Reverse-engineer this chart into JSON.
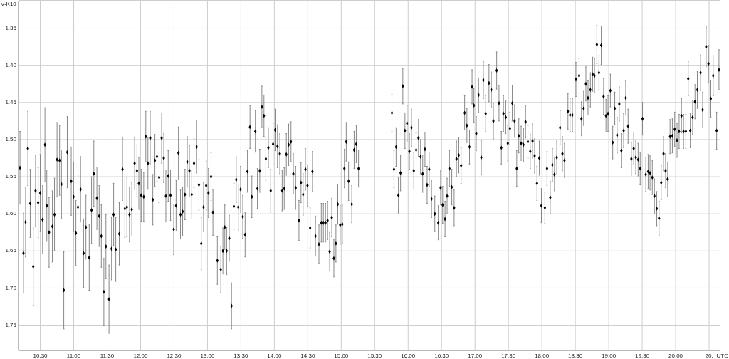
{
  "chart_data": {
    "type": "scatter",
    "ylabel": "V-K10",
    "xlabel": "UTC",
    "marker": "diamond",
    "grid": true,
    "xlim": [
      10.175,
      20.67
    ],
    "ylim": [
      1.784,
      1.313
    ],
    "xticks": [
      {
        "value": 10.5,
        "label": "10:30"
      },
      {
        "value": 11,
        "label": "11:00"
      },
      {
        "value": 11.5,
        "label": "11:30"
      },
      {
        "value": 12,
        "label": "12:00"
      },
      {
        "value": 12.5,
        "label": "12:30"
      },
      {
        "value": 13,
        "label": "13:00"
      },
      {
        "value": 13.5,
        "label": "13:30"
      },
      {
        "value": 14,
        "label": "14:00"
      },
      {
        "value": 14.5,
        "label": "14:30"
      },
      {
        "value": 15,
        "label": "15:00"
      },
      {
        "value": 15.5,
        "label": "15:30"
      },
      {
        "value": 16,
        "label": "16:00"
      },
      {
        "value": 16.5,
        "label": "16:30"
      },
      {
        "value": 17,
        "label": "17:00"
      },
      {
        "value": 17.5,
        "label": "17:30"
      },
      {
        "value": 18,
        "label": "18:00"
      },
      {
        "value": 18.5,
        "label": "18:30"
      },
      {
        "value": 19,
        "label": "19:00"
      },
      {
        "value": 19.5,
        "label": "19:30"
      },
      {
        "value": 20,
        "label": "20:00"
      },
      {
        "value": 20.5,
        "label": "20:"
      }
    ],
    "yticks": [
      1.35,
      {
        "value": 1.4,
        "label": "1.40"
      },
      1.45,
      {
        "value": 1.5,
        "label": "1.50"
      },
      1.55,
      {
        "value": 1.6,
        "label": "1.60"
      },
      1.65,
      {
        "value": 1.7,
        "label": "1.70"
      },
      1.75
    ],
    "x": [
      10.197,
      10.249,
      10.281,
      10.315,
      10.35,
      10.395,
      10.43,
      10.469,
      10.5,
      10.535,
      10.57,
      10.598,
      10.632,
      10.681,
      10.713,
      10.751,
      10.789,
      10.817,
      10.852,
      10.904,
      10.963,
      10.998,
      11.033,
      11.064,
      11.103,
      11.148,
      11.183,
      11.232,
      11.267,
      11.301,
      11.347,
      11.381,
      11.413,
      11.451,
      11.482,
      11.528,
      11.566,
      11.597,
      11.629,
      11.681,
      11.73,
      11.765,
      11.796,
      11.834,
      11.869,
      11.911,
      11.946,
      11.974,
      12.009,
      12.047,
      12.078,
      12.11,
      12.144,
      12.183,
      12.214,
      12.245,
      12.277,
      12.315,
      12.347,
      12.378,
      12.413,
      12.448,
      12.496,
      12.531,
      12.566,
      12.597,
      12.629,
      12.664,
      12.698,
      12.73,
      12.765,
      12.799,
      12.838,
      12.873,
      12.907,
      12.942,
      12.981,
      13.015,
      13.054,
      13.082,
      13.148,
      13.2,
      13.231,
      13.259,
      13.287,
      13.326,
      13.36,
      13.395,
      13.43,
      13.461,
      13.496,
      13.528,
      13.563,
      13.598,
      13.636,
      13.664,
      13.716,
      13.747,
      13.782,
      13.814,
      13.845,
      13.873,
      13.911,
      13.946,
      13.981,
      14.012,
      14.047,
      14.082,
      14.117,
      14.148,
      14.179,
      14.214,
      14.249,
      14.284,
      14.319,
      14.368,
      14.399,
      14.43,
      14.465,
      14.496,
      14.535,
      14.57,
      14.615,
      14.667,
      14.702,
      14.733,
      14.765,
      14.796,
      14.827,
      14.859,
      14.89,
      14.921,
      14.949,
      14.984,
      15.016,
      15.047,
      15.075,
      15.11,
      15.158,
      15.193,
      15.225,
      15.259,
      15.758,
      15.789,
      15.82,
      15.855,
      15.887,
      15.921,
      15.953,
      15.984,
      16.019,
      16.05,
      16.085,
      16.12,
      16.155,
      16.186,
      16.218,
      16.252,
      16.284,
      16.315,
      16.35,
      16.399,
      16.451,
      16.486,
      16.517,
      16.552,
      16.583,
      16.618,
      16.653,
      16.688,
      16.723,
      16.758,
      16.792,
      16.845,
      16.879,
      16.918,
      16.956,
      16.984,
      17.019,
      17.054,
      17.094,
      17.125,
      17.16,
      17.209,
      17.244,
      17.275,
      17.324,
      17.359,
      17.394,
      17.425,
      17.46,
      17.491,
      17.523,
      17.557,
      17.592,
      17.624,
      17.655,
      17.69,
      17.725,
      17.756,
      17.791,
      17.826,
      17.861,
      17.892,
      17.927,
      17.962,
      17.993,
      18.045,
      18.077,
      18.125,
      18.157,
      18.188,
      18.223,
      18.272,
      18.307,
      18.338,
      18.39,
      18.421,
      18.456,
      18.509,
      18.557,
      18.592,
      18.624,
      18.658,
      18.69,
      18.725,
      18.759,
      18.787,
      18.822,
      18.854,
      18.888,
      18.923,
      18.958,
      18.989,
      19.024,
      19.059,
      19.09,
      19.125,
      19.157,
      19.188,
      19.223,
      19.254,
      19.289,
      19.338,
      19.373,
      19.404,
      19.439,
      19.47,
      19.505,
      19.554,
      19.589,
      19.617,
      19.651,
      19.683,
      19.718,
      19.752,
      19.784,
      19.819,
      19.85,
      19.881,
      19.916,
      19.951,
      19.986,
      20.021,
      20.052,
      20.087,
      20.118,
      20.153,
      20.188,
      20.219,
      20.254,
      20.289,
      20.324,
      20.373,
      20.404,
      20.456,
      20.491,
      20.526,
      20.561,
      20.613,
      20.648
    ],
    "series": [
      {
        "color": "#000000",
        "values": [
          1.538,
          1.653,
          1.611,
          1.512,
          1.586,
          1.671,
          1.569,
          1.585,
          1.572,
          1.608,
          1.507,
          1.589,
          1.625,
          1.617,
          1.601,
          1.527,
          1.528,
          1.56,
          1.703,
          1.517,
          1.556,
          1.577,
          1.626,
          1.591,
          1.567,
          1.653,
          1.618,
          1.659,
          1.595,
          1.546,
          1.579,
          1.603,
          1.63,
          1.705,
          1.644,
          1.715,
          1.647,
          1.601,
          1.648,
          1.627,
          1.54,
          1.593,
          1.591,
          1.601,
          1.594,
          1.532,
          1.542,
          1.559,
          1.575,
          1.577,
          1.496,
          1.532,
          1.498,
          1.581,
          1.528,
          1.523,
          1.551,
          1.498,
          1.525,
          1.576,
          1.549,
          1.575,
          1.621,
          1.589,
          1.518,
          1.601,
          1.597,
          1.574,
          1.53,
          1.542,
          1.574,
          1.532,
          1.51,
          1.561,
          1.64,
          1.591,
          1.562,
          1.572,
          1.55,
          1.598,
          1.663,
          1.675,
          1.65,
          1.618,
          1.65,
          1.633,
          1.724,
          1.59,
          1.554,
          1.591,
          1.567,
          1.604,
          1.628,
          1.543,
          1.483,
          1.577,
          1.489,
          1.566,
          1.542,
          1.456,
          1.468,
          1.526,
          1.511,
          1.569,
          1.506,
          1.487,
          1.509,
          1.519,
          1.569,
          1.566,
          1.52,
          1.507,
          1.503,
          1.546,
          1.565,
          1.609,
          1.558,
          1.574,
          1.54,
          1.562,
          1.619,
          1.543,
          1.63,
          1.641,
          1.612,
          1.612,
          1.612,
          1.609,
          1.651,
          1.605,
          1.66,
          1.64,
          1.587,
          1.615,
          1.614,
          1.539,
          1.503,
          1.556,
          1.587,
          1.514,
          1.506,
          1.539,
          1.464,
          1.54,
          1.51,
          1.575,
          1.545,
          1.428,
          1.488,
          1.478,
          1.516,
          1.484,
          1.542,
          1.514,
          1.498,
          1.523,
          1.546,
          1.513,
          1.561,
          1.54,
          1.58,
          1.6,
          1.612,
          1.565,
          1.588,
          1.607,
          1.576,
          1.539,
          1.564,
          1.592,
          1.526,
          1.521,
          1.535,
          1.464,
          1.481,
          1.51,
          1.429,
          1.454,
          1.492,
          1.44,
          1.524,
          1.42,
          1.465,
          1.424,
          1.433,
          1.475,
          1.407,
          1.451,
          1.511,
          1.465,
          1.47,
          1.505,
          1.485,
          1.451,
          1.475,
          1.539,
          1.495,
          1.505,
          1.507,
          1.476,
          1.503,
          1.516,
          1.502,
          1.522,
          1.559,
          1.525,
          1.589,
          1.592,
          1.539,
          1.578,
          1.534,
          1.547,
          1.524,
          1.484,
          1.519,
          1.528,
          1.462,
          1.467,
          1.467,
          1.419,
          1.414,
          1.472,
          1.458,
          1.425,
          1.444,
          1.433,
          1.412,
          1.414,
          1.372,
          1.41,
          1.373,
          1.442,
          1.468,
          1.465,
          1.434,
          1.504,
          1.458,
          1.494,
          1.452,
          1.515,
          1.488,
          1.444,
          1.482,
          1.526,
          1.512,
          1.524,
          1.527,
          1.539,
          1.472,
          1.547,
          1.543,
          1.545,
          1.551,
          1.576,
          1.593,
          1.606,
          1.558,
          1.519,
          1.542,
          1.553,
          1.496,
          1.495,
          1.486,
          1.501,
          1.489,
          1.468,
          1.489,
          1.489,
          1.418,
          1.488,
          1.47,
          1.449,
          1.433,
          1.41,
          1.46,
          1.375,
          1.398,
          1.445,
          1.414,
          1.488,
          1.406
        ],
        "errors": [
          0.049,
          0.054,
          0.047,
          0.05,
          0.046,
          0.052,
          0.048,
          0.047,
          0.052,
          0.046,
          0.05,
          0.048,
          0.047,
          0.048,
          0.049,
          0.05,
          0.047,
          0.046,
          0.052,
          0.048,
          0.046,
          0.047,
          0.044,
          0.043,
          0.044,
          0.046,
          0.043,
          0.044,
          0.045,
          0.044,
          0.042,
          0.041,
          0.042,
          0.045,
          0.043,
          0.046,
          0.042,
          0.042,
          0.043,
          0.042,
          0.042,
          0.039,
          0.04,
          0.037,
          0.036,
          0.035,
          0.035,
          0.035,
          0.035,
          0.033,
          0.034,
          0.035,
          0.036,
          0.034,
          0.035,
          0.033,
          0.034,
          0.034,
          0.033,
          0.035,
          0.034,
          0.034,
          0.034,
          0.034,
          0.035,
          0.033,
          0.033,
          0.034,
          0.034,
          0.034,
          0.033,
          0.033,
          0.035,
          0.034,
          0.035,
          0.033,
          0.033,
          0.033,
          0.032,
          0.031,
          0.032,
          0.031,
          0.031,
          0.03,
          0.032,
          0.031,
          0.031,
          0.031,
          0.031,
          0.031,
          0.031,
          0.029,
          0.03,
          0.028,
          0.029,
          0.028,
          0.028,
          0.027,
          0.029,
          0.028,
          0.028,
          0.029,
          0.027,
          0.029,
          0.028,
          0.028,
          0.029,
          0.027,
          0.027,
          0.028,
          0.028,
          0.028,
          0.027,
          0.027,
          0.029,
          0.027,
          0.027,
          0.028,
          0.028,
          0.028,
          0.027,
          0.027,
          0.027,
          0.026,
          0.026,
          0.026,
          0.026,
          0.026,
          0.026,
          0.026,
          0.025,
          0.025,
          0.027,
          0.026,
          0.026,
          0.026,
          0.026,
          0.026,
          0.025,
          0.025,
          0.025,
          0.025,
          0.025,
          0.025,
          0.026,
          0.024,
          0.024,
          0.024,
          0.024,
          0.024,
          0.024,
          0.025,
          0.025,
          0.023,
          0.025,
          0.023,
          0.025,
          0.023,
          0.025,
          0.023,
          0.025,
          0.024,
          0.023,
          0.023,
          0.025,
          0.024,
          0.024,
          0.024,
          0.024,
          0.024,
          0.024,
          0.024,
          0.024,
          0.023,
          0.023,
          0.023,
          0.023,
          0.023,
          0.023,
          0.023,
          0.023,
          0.025,
          0.024,
          0.025,
          0.024,
          0.024,
          0.025,
          0.024,
          0.022,
          0.024,
          0.022,
          0.024,
          0.022,
          0.024,
          0.022,
          0.024,
          0.023,
          0.023,
          0.022,
          0.022,
          0.022,
          0.023,
          0.023,
          0.023,
          0.023,
          0.023,
          0.023,
          0.021,
          0.023,
          0.022,
          0.022,
          0.022,
          0.022,
          0.023,
          0.023,
          0.023,
          0.024,
          0.022,
          0.022,
          0.023,
          0.023,
          0.023,
          0.023,
          0.023,
          0.023,
          0.023,
          0.023,
          0.023,
          0.026,
          0.023,
          0.026,
          0.024,
          0.022,
          0.024,
          0.022,
          0.022,
          0.022,
          0.024,
          0.023,
          0.023,
          0.023,
          0.023,
          0.023,
          0.022,
          0.022,
          0.022,
          0.022,
          0.022,
          0.022,
          0.023,
          0.023,
          0.023,
          0.023,
          0.023,
          0.023,
          0.023,
          0.023,
          0.023,
          0.023,
          0.023,
          0.023,
          0.023,
          0.023,
          0.023,
          0.023,
          0.023,
          0.023,
          0.023,
          0.023,
          0.023,
          0.023,
          0.023,
          0.025,
          0.024,
          0.024,
          0.027,
          0.025,
          0.025,
          0.027,
          0.025,
          0.027
        ]
      }
    ]
  }
}
